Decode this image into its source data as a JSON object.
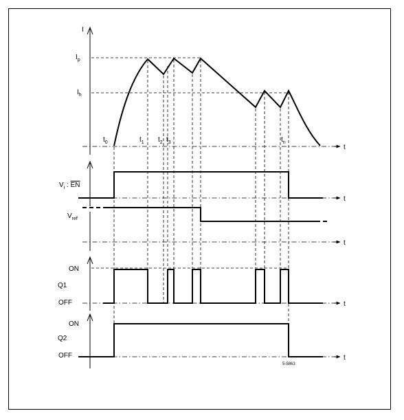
{
  "axes": {
    "current": {
      "name": "I",
      "peak_level": "I",
      "peak_sub": "p",
      "hold_level": "I",
      "hold_sub": "h"
    },
    "time_symbol": "t",
    "enable": {
      "label_main": "V",
      "label_sub": "i",
      "label_sep": " : ",
      "label_en": "EN"
    },
    "vref": {
      "label_main": "V",
      "label_sub": "ref"
    },
    "q1": {
      "name": "Q1",
      "on": "ON",
      "off": "OFF"
    },
    "q2": {
      "name": "Q2",
      "on": "ON",
      "off": "OFF"
    }
  },
  "time_markers": [
    {
      "base": "t",
      "sub": "0"
    },
    {
      "base": "t",
      "sub": "1"
    },
    {
      "base": "t",
      "sub": "2"
    },
    {
      "base": "t",
      "sub": "3"
    },
    {
      "base": "t",
      "sub": "n"
    }
  ],
  "figure_code": "5-5863"
}
